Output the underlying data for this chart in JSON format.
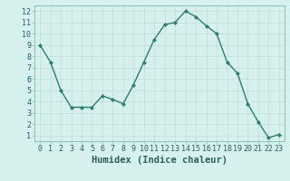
{
  "x": [
    0,
    1,
    2,
    3,
    4,
    5,
    6,
    7,
    8,
    9,
    10,
    11,
    12,
    13,
    14,
    15,
    16,
    17,
    18,
    19,
    20,
    21,
    22,
    23
  ],
  "y": [
    9.0,
    7.5,
    5.0,
    3.5,
    3.5,
    3.5,
    4.5,
    4.2,
    3.8,
    5.5,
    7.5,
    9.5,
    10.8,
    11.0,
    12.0,
    11.5,
    10.7,
    10.0,
    7.5,
    6.5,
    3.8,
    2.2,
    0.8,
    1.1
  ],
  "xlabel": "Humidex (Indice chaleur)",
  "ylim": [
    0.5,
    12.5
  ],
  "xlim": [
    -0.5,
    23.5
  ],
  "yticks": [
    1,
    2,
    3,
    4,
    5,
    6,
    7,
    8,
    9,
    10,
    11,
    12
  ],
  "xticks": [
    0,
    1,
    2,
    3,
    4,
    5,
    6,
    7,
    8,
    9,
    10,
    11,
    12,
    13,
    14,
    15,
    16,
    17,
    18,
    19,
    20,
    21,
    22,
    23
  ],
  "line_color": "#2e7d6e",
  "marker_color": "#2e7d6e",
  "bg_color": "#d6f0ee",
  "grid_color": "#c0deda",
  "label_color": "#2e5f58",
  "xlabel_fontsize": 7.5,
  "tick_fontsize": 6.0
}
